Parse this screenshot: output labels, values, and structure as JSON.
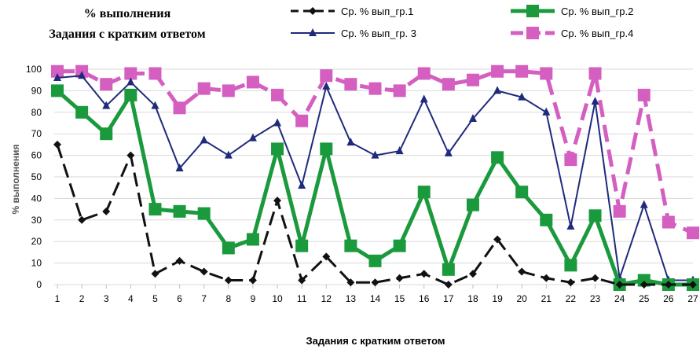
{
  "chart_data": {
    "type": "line",
    "title": [
      "% выполнения",
      "Задания с кратким ответом"
    ],
    "xlabel": "Задания с кратким ответом",
    "ylabel": "% выполнения",
    "x": [
      "1",
      "2",
      "3",
      "4",
      "5",
      "6",
      "7",
      "8",
      "9",
      "10",
      "11",
      "12",
      "13",
      "14",
      "15",
      "16",
      "17",
      "18",
      "19",
      "20",
      "21",
      "22",
      "23",
      "24",
      "25",
      "26",
      "27"
    ],
    "ylim": [
      0,
      100
    ],
    "yticks": [
      "0",
      "10",
      "20",
      "30",
      "40",
      "50",
      "60",
      "70",
      "80",
      "90",
      "100"
    ],
    "grid": "horizontal",
    "legend_position": "top-right",
    "series": [
      {
        "name": "Ср. % вып_гр.1",
        "color": "#111111",
        "marker": "diamond",
        "dash": "long-dash",
        "values": [
          65,
          30,
          34,
          60,
          5,
          11,
          6,
          2,
          2,
          39,
          2,
          13,
          1,
          1,
          3,
          5,
          0,
          5,
          21,
          6,
          3,
          1,
          3,
          0,
          0,
          0,
          0
        ]
      },
      {
        "name": "Ср. % вып_гр.2",
        "color": "#1a9a3c",
        "marker": "square",
        "dash": "solid",
        "values": [
          90,
          80,
          70,
          88,
          35,
          34,
          33,
          17,
          21,
          63,
          18,
          63,
          18,
          11,
          18,
          43,
          7,
          37,
          59,
          43,
          30,
          9,
          32,
          0,
          2,
          0,
          0
        ]
      },
      {
        "name": "Ср. % вып_гр. 3",
        "color": "#1f2a7c",
        "marker": "triangle",
        "dash": "solid",
        "values": [
          96,
          97,
          83,
          94,
          83,
          54,
          67,
          60,
          68,
          75,
          46,
          92,
          66,
          60,
          62,
          86,
          61,
          77,
          90,
          87,
          80,
          27,
          85,
          3,
          37,
          2,
          2
        ]
      },
      {
        "name": "Ср. % вып_гр.4",
        "color": "#d45fc0",
        "marker": "square",
        "dash": "long-dash",
        "values": [
          99,
          99,
          93,
          98,
          98,
          82,
          91,
          90,
          94,
          88,
          76,
          97,
          93,
          91,
          90,
          98,
          93,
          95,
          99,
          99,
          98,
          58,
          98,
          34,
          88,
          29,
          24
        ]
      }
    ]
  }
}
